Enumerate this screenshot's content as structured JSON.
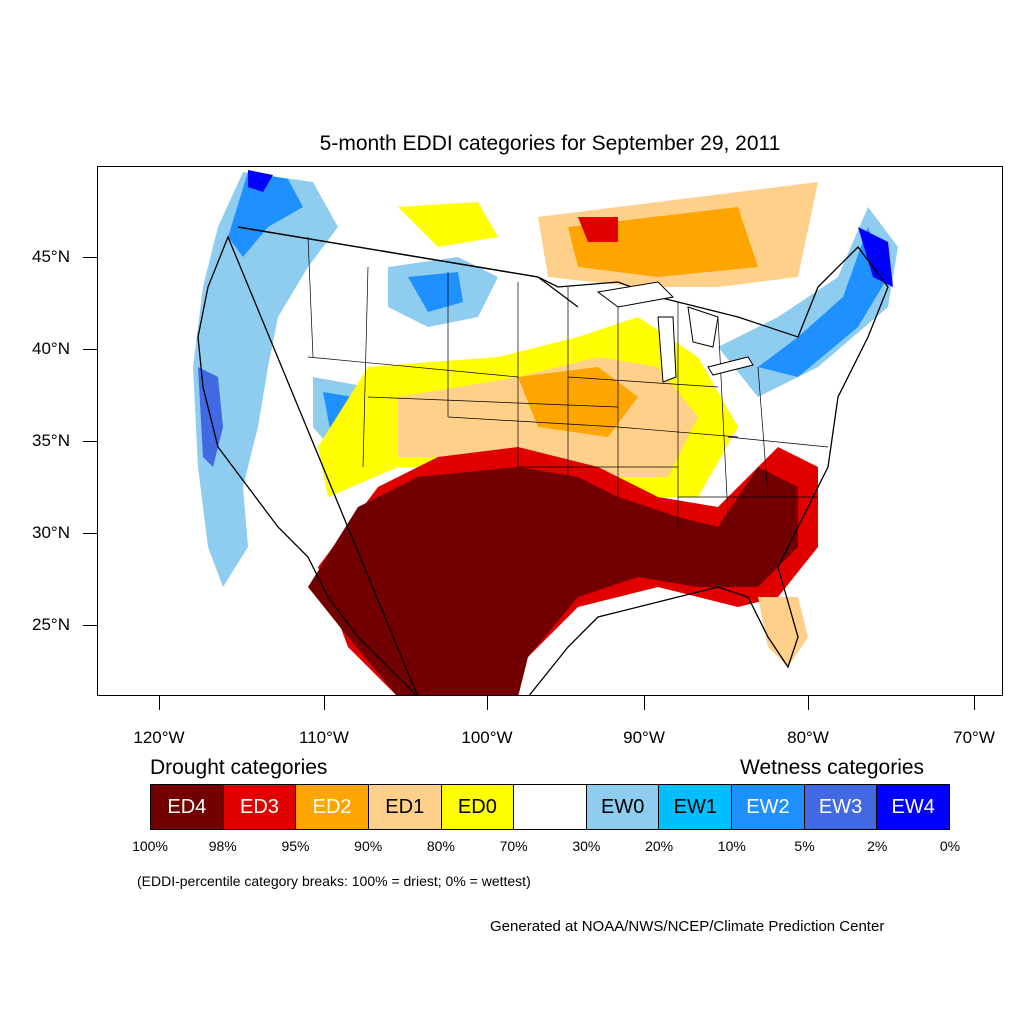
{
  "title": "5-month EDDI categories for September 29, 2011",
  "map": {
    "lat_labels": [
      "45°N",
      "40°N",
      "35°N",
      "30°N",
      "25°N"
    ],
    "lon_labels": [
      "120°W",
      "110°W",
      "100°W",
      "90°W",
      "80°W",
      "70°W"
    ],
    "colors": {
      "ED4": "#720000",
      "ED3": "#e00000",
      "ED2": "#ffa500",
      "ED1": "#ffd08a",
      "ED0": "#ffff00",
      "neutral": "#ffffff",
      "EW0": "#8ecdef",
      "EW1": "#00bfff",
      "EW2": "#1e90ff",
      "EW3": "#4169e1",
      "EW4": "#0000ff"
    }
  },
  "legend": {
    "drought_heading": "Drought categories",
    "wetness_heading": "Wetness categories",
    "categories": [
      {
        "label": "ED4",
        "color": "#720000",
        "text_color": "#ffffff"
      },
      {
        "label": "ED3",
        "color": "#e00000",
        "text_color": "#ffffff"
      },
      {
        "label": "ED2",
        "color": "#ffa500",
        "text_color": "#ffffff"
      },
      {
        "label": "ED1",
        "color": "#ffd08a",
        "text_color": "#000000"
      },
      {
        "label": "ED0",
        "color": "#ffff00",
        "text_color": "#000000"
      },
      {
        "label": "",
        "color": "#ffffff",
        "text_color": "#000000"
      },
      {
        "label": "EW0",
        "color": "#8ecdef",
        "text_color": "#000000"
      },
      {
        "label": "EW1",
        "color": "#00bfff",
        "text_color": "#000000"
      },
      {
        "label": "EW2",
        "color": "#1e90ff",
        "text_color": "#ffffff"
      },
      {
        "label": "EW3",
        "color": "#4169e1",
        "text_color": "#ffffff"
      },
      {
        "label": "EW4",
        "color": "#0000ff",
        "text_color": "#ffffff"
      }
    ],
    "breaks": [
      "100%",
      "98%",
      "95%",
      "90%",
      "80%",
      "70%",
      "30%",
      "20%",
      "10%",
      "5%",
      "2%",
      "0%"
    ],
    "note": "(EDDI-percentile category breaks: 100% = driest; 0% = wettest)"
  },
  "credit": "Generated at NOAA/NWS/NCEP/Climate Prediction Center"
}
